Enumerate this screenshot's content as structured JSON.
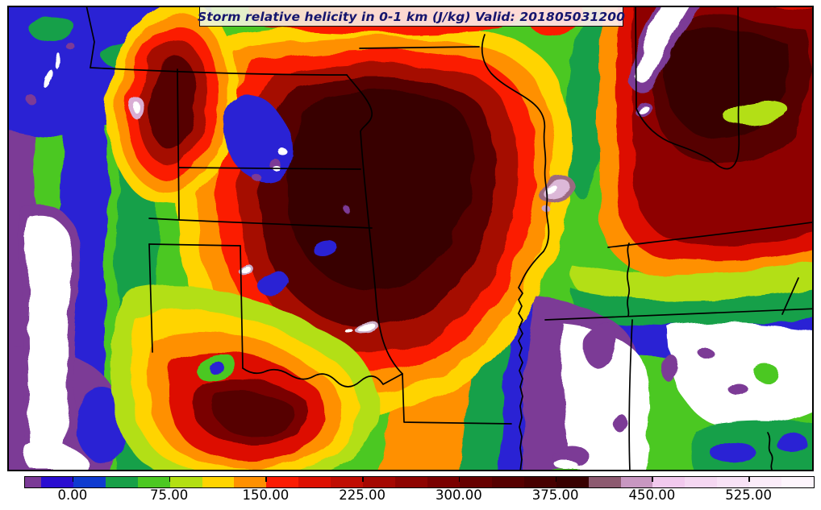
{
  "figure": {
    "title": "Storm relative helicity in 0-1 km (J/kg) Valid: 201805031200",
    "background": "#ffffff",
    "frame_color": "#000000"
  },
  "colorbar": {
    "orientation": "horizontal",
    "units": "J/kg",
    "min": -37.5,
    "max": 575,
    "interval": 25,
    "border_color": "#000000",
    "segments": [
      {
        "from": -37.5,
        "to": -25,
        "color": "#7b3a96"
      },
      {
        "from": -25,
        "to": 0,
        "color": "#2a0dd1"
      },
      {
        "from": 0,
        "to": 25,
        "color": "#0f3bd0"
      },
      {
        "from": 25,
        "to": 50,
        "color": "#18a048"
      },
      {
        "from": 50,
        "to": 75,
        "color": "#4cc822"
      },
      {
        "from": 75,
        "to": 100,
        "color": "#b3df13"
      },
      {
        "from": 100,
        "to": 125,
        "color": "#ffd400"
      },
      {
        "from": 125,
        "to": 150,
        "color": "#ff9000"
      },
      {
        "from": 150,
        "to": 175,
        "color": "#fb1c03"
      },
      {
        "from": 175,
        "to": 200,
        "color": "#dd1002"
      },
      {
        "from": 200,
        "to": 225,
        "color": "#c00d03"
      },
      {
        "from": 225,
        "to": 250,
        "color": "#a50802"
      },
      {
        "from": 250,
        "to": 275,
        "color": "#8e0401"
      },
      {
        "from": 275,
        "to": 300,
        "color": "#7a0000"
      },
      {
        "from": 300,
        "to": 325,
        "color": "#670000"
      },
      {
        "from": 325,
        "to": 350,
        "color": "#560000"
      },
      {
        "from": 350,
        "to": 375,
        "color": "#470000"
      },
      {
        "from": 375,
        "to": 400,
        "color": "#380000"
      },
      {
        "from": 400,
        "to": 425,
        "color": "#8d5a70"
      },
      {
        "from": 425,
        "to": 450,
        "color": "#c897c1"
      },
      {
        "from": 450,
        "to": 475,
        "color": "#f2c9ee"
      },
      {
        "from": 475,
        "to": 500,
        "color": "#f5d7f2"
      },
      {
        "from": 500,
        "to": 525,
        "color": "#f8e2f6"
      },
      {
        "from": 525,
        "to": 550,
        "color": "#fbecf9"
      },
      {
        "from": 550,
        "to": 575,
        "color": "#fdf5fc"
      }
    ],
    "ticks": [
      {
        "value": 0,
        "label": "0.00"
      },
      {
        "value": 75,
        "label": "75.00"
      },
      {
        "value": 150,
        "label": "150.00"
      },
      {
        "value": 225,
        "label": "225.00"
      },
      {
        "value": 300,
        "label": "300.00"
      },
      {
        "value": 375,
        "label": "375.00"
      },
      {
        "value": 450,
        "label": "450.00"
      },
      {
        "value": 525,
        "label": "525.00"
      }
    ]
  },
  "chart_data": {
    "type": "heatmap",
    "title": "Storm relative helicity in 0-1 km (J/kg) Valid: 201805031200",
    "field": "storm relative helicity 0-1 km",
    "units": "J/kg",
    "valid_time": "201805031200",
    "region": "Central/Southern United States (filled contour map with state borders)",
    "contour_interval": 25,
    "scale_range": [
      -37.5,
      575
    ],
    "levels": [
      -25,
      0,
      25,
      50,
      75,
      100,
      125,
      150,
      175,
      200,
      225,
      250,
      275,
      300,
      325,
      350,
      375,
      400,
      425,
      450,
      475,
      500,
      525,
      550
    ],
    "colorbar_tick_labels": [
      "0.00",
      "75.00",
      "150.00",
      "225.00",
      "300.00",
      "375.00",
      "450.00",
      "525.00"
    ],
    "legend_position": "bottom",
    "notable_features": [
      "Broad maximum > 300 J/kg (dark red to maroon) covering Kansas, Missouri, Oklahoma and the mid-Mississippi valley",
      "Local maximum > 425 J/kg (pink shading) near the Missouri bootheel",
      "Secondary dark-red maximum > 275 J/kg over Illinois/Kentucky/Tennessee",
      "Elongated maximum > 300 J/kg over western Nebraska with a > 425 J/kg pink core",
      "Minima below the scale (white, < -37.5 J/kg) along the lower Mississippi valley, far west edge, and top-right corner"
    ]
  }
}
